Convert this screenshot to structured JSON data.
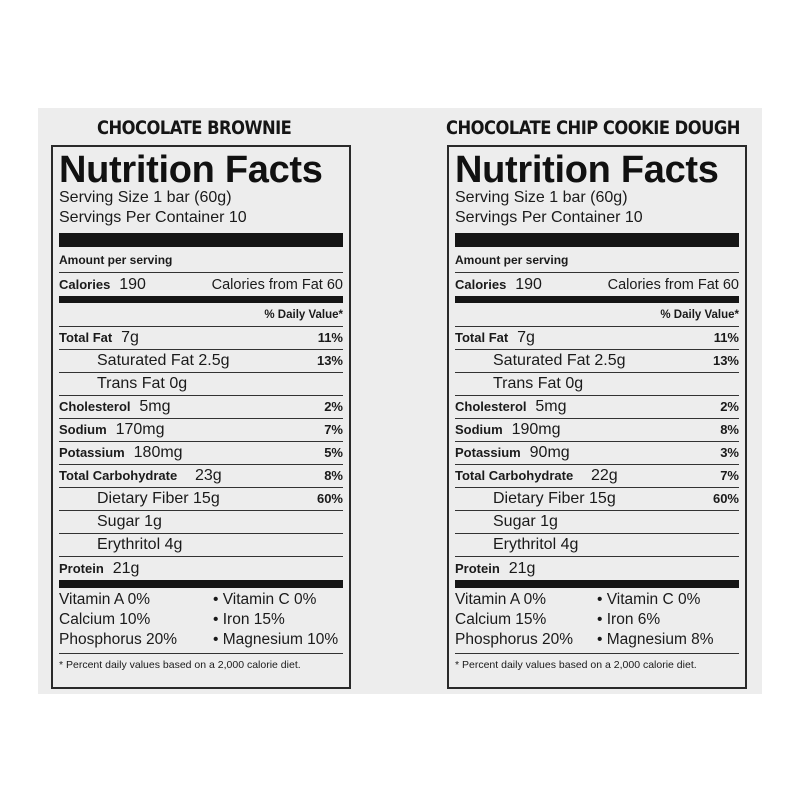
{
  "panels": [
    {
      "product": "CHOCOLATE BROWNIE",
      "heading": "Nutrition Facts",
      "serving_size": "Serving Size 1 bar (60g)",
      "servings_per_container": "Servings Per Container 10",
      "amount_per_serving": "Amount per serving",
      "calories_label": "Calories",
      "calories_value": "190",
      "calories_from_fat": "Calories from Fat 60",
      "daily_value_header": "% Daily Value*",
      "nutrients": [
        {
          "label": "Total Fat",
          "amount": "7g",
          "dv": "11%"
        },
        {
          "label": "Saturated Fat 2.5g",
          "amount": "",
          "dv": "13%"
        },
        {
          "label": "Trans Fat 0g",
          "amount": "",
          "dv": ""
        },
        {
          "label": "Cholesterol",
          "amount": "5mg",
          "dv": "2%"
        },
        {
          "label": "Sodium",
          "amount": "170mg",
          "dv": "7%"
        },
        {
          "label": "Potassium",
          "amount": "180mg",
          "dv": "5%"
        },
        {
          "label": "Total Carbohydrate",
          "amount": "23g",
          "dv": "8%"
        },
        {
          "label": "Dietary Fiber 15g",
          "amount": "",
          "dv": "60%"
        },
        {
          "label": "Sugar 1g",
          "amount": "",
          "dv": ""
        },
        {
          "label": "Erythritol 4g",
          "amount": "",
          "dv": ""
        },
        {
          "label": "Protein",
          "amount": "21g",
          "dv": ""
        }
      ],
      "vitamins": [
        [
          "Vitamin A 0%",
          "• Vitamin C 0%"
        ],
        [
          "Calcium 10%",
          "• Iron 15%"
        ],
        [
          "Phosphorus 20%",
          "• Magnesium 10%"
        ]
      ],
      "footnote": "* Percent daily values based on a 2,000 calorie diet."
    },
    {
      "product": "CHOCOLATE CHIP COOKIE DOUGH",
      "heading": "Nutrition Facts",
      "serving_size": "Serving Size 1 bar (60g)",
      "servings_per_container": "Servings Per Container 10",
      "amount_per_serving": "Amount per serving",
      "calories_label": "Calories",
      "calories_value": "190",
      "calories_from_fat": "Calories from Fat 60",
      "daily_value_header": "% Daily Value*",
      "nutrients": [
        {
          "label": "Total Fat",
          "amount": "7g",
          "dv": "11%"
        },
        {
          "label": "Saturated Fat 2.5g",
          "amount": "",
          "dv": "13%"
        },
        {
          "label": "Trans Fat 0g",
          "amount": "",
          "dv": ""
        },
        {
          "label": "Cholesterol",
          "amount": "5mg",
          "dv": "2%"
        },
        {
          "label": "Sodium",
          "amount": "190mg",
          "dv": "8%"
        },
        {
          "label": "Potassium",
          "amount": "90mg",
          "dv": "3%"
        },
        {
          "label": "Total Carbohydrate",
          "amount": "22g",
          "dv": "7%"
        },
        {
          "label": "Dietary Fiber 15g",
          "amount": "",
          "dv": "60%"
        },
        {
          "label": "Sugar 1g",
          "amount": "",
          "dv": ""
        },
        {
          "label": "Erythritol 4g",
          "amount": "",
          "dv": ""
        },
        {
          "label": "Protein",
          "amount": "21g",
          "dv": ""
        }
      ],
      "vitamins": [
        [
          "Vitamin A 0%",
          "• Vitamin C 0%"
        ],
        [
          "Calcium 15%",
          "• Iron 6%"
        ],
        [
          "Phosphorus 20%",
          "• Magnesium 8%"
        ]
      ],
      "footnote": "* Percent daily values based on a 2,000 calorie diet."
    }
  ]
}
